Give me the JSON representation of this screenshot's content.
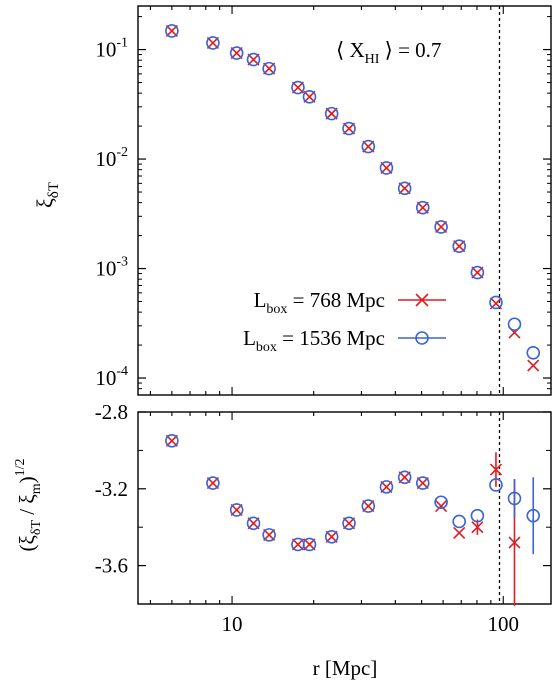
{
  "chart_data": [
    {
      "type": "scatter",
      "panel": "top",
      "ylabel_main": "ξ",
      "ylabel_sub": "δT",
      "yscale": "log",
      "ylim": [
        7e-05,
        0.25
      ],
      "xscale": "log",
      "xlim": [
        4.5,
        150
      ],
      "yticks": [
        {
          "value": 0.1,
          "base": "10",
          "exp": "-1"
        },
        {
          "value": 0.01,
          "base": "10",
          "exp": "-2"
        },
        {
          "value": 0.001,
          "base": "10",
          "exp": "-3"
        },
        {
          "value": 0.0001,
          "base": "10",
          "exp": "-4"
        }
      ],
      "annotation": {
        "open": "⟨ X",
        "sub": "HI",
        "close": " ⟩ = 0.7"
      },
      "vline_x": 100,
      "legend_position": "center-right",
      "series": [
        {
          "name_main": "L",
          "name_sub": "box",
          "name_rest": " = 768 Mpc",
          "marker": "cross",
          "color": "#e41a1c",
          "x": [
            6.0,
            8.5,
            10.4,
            12.0,
            13.7,
            17.5,
            19.3,
            23.3,
            27.0,
            31.8,
            37.1,
            43.3,
            50.5,
            59.0,
            68.8,
            80.3,
            94.0,
            110.0,
            129.0
          ],
          "y": [
            0.148,
            0.115,
            0.093,
            0.081,
            0.067,
            0.045,
            0.037,
            0.026,
            0.019,
            0.013,
            0.0083,
            0.0054,
            0.0036,
            0.0024,
            0.0016,
            0.00092,
            0.00048,
            0.00026,
            0.00013
          ]
        },
        {
          "name_main": "L",
          "name_sub": "box",
          "name_rest": " = 1536 Mpc",
          "marker": "circle",
          "color": "#3b64d4",
          "x": [
            6.0,
            8.5,
            10.4,
            12.0,
            13.7,
            17.5,
            19.3,
            23.3,
            27.0,
            31.8,
            37.1,
            43.3,
            50.5,
            59.0,
            68.8,
            80.3,
            94.0,
            110.0,
            129.0
          ],
          "y": [
            0.148,
            0.115,
            0.093,
            0.081,
            0.067,
            0.045,
            0.037,
            0.026,
            0.019,
            0.013,
            0.0083,
            0.0054,
            0.0036,
            0.0024,
            0.0016,
            0.00092,
            0.00049,
            0.00031,
            0.00017
          ]
        }
      ]
    },
    {
      "type": "scatter",
      "panel": "bottom",
      "ylabel_parts": {
        "open": "(ξ",
        "sub1": "δT",
        "mid": " / ξ",
        "sub2": "m",
        "close": ")",
        "sup": "1/2"
      },
      "ylim": [
        -3.8,
        -2.8
      ],
      "yticks": [
        "-2.8",
        "-3.2",
        "-3.6"
      ],
      "xscale": "log",
      "xlim": [
        4.5,
        150
      ],
      "xticks": [
        "10",
        "100"
      ],
      "xlabel": "r [Mpc]",
      "vline_x": 100,
      "series": [
        {
          "marker": "cross",
          "color": "#e41a1c",
          "x": [
            6.0,
            8.5,
            10.4,
            12.0,
            13.7,
            17.5,
            19.3,
            23.3,
            27.0,
            31.8,
            37.1,
            43.3,
            50.5,
            59.0,
            68.8,
            80.3,
            94.0,
            110.0,
            129.0
          ],
          "y": [
            -2.95,
            -3.17,
            -3.31,
            -3.38,
            -3.44,
            -3.49,
            -3.49,
            -3.45,
            -3.38,
            -3.29,
            -3.19,
            -3.14,
            -3.17,
            -3.29,
            -3.43,
            -3.4,
            -3.1,
            -3.48,
            null
          ],
          "err": [
            null,
            null,
            null,
            null,
            null,
            null,
            null,
            null,
            null,
            null,
            null,
            null,
            null,
            null,
            null,
            0.04,
            0.09,
            0.33,
            null
          ]
        },
        {
          "marker": "circle",
          "color": "#3b64d4",
          "x": [
            6.0,
            8.5,
            10.4,
            12.0,
            13.7,
            17.5,
            19.3,
            23.3,
            27.0,
            31.8,
            37.1,
            43.3,
            50.5,
            59.0,
            68.8,
            80.3,
            94.0,
            110.0,
            129.0
          ],
          "y": [
            -2.95,
            -3.17,
            -3.31,
            -3.38,
            -3.44,
            -3.49,
            -3.49,
            -3.45,
            -3.38,
            -3.29,
            -3.19,
            -3.14,
            -3.17,
            -3.27,
            -3.37,
            -3.34,
            -3.18,
            -3.25,
            -3.34
          ],
          "err": [
            null,
            null,
            null,
            null,
            null,
            null,
            null,
            null,
            null,
            null,
            null,
            null,
            null,
            null,
            null,
            null,
            null,
            0.1,
            0.2
          ]
        }
      ]
    }
  ]
}
